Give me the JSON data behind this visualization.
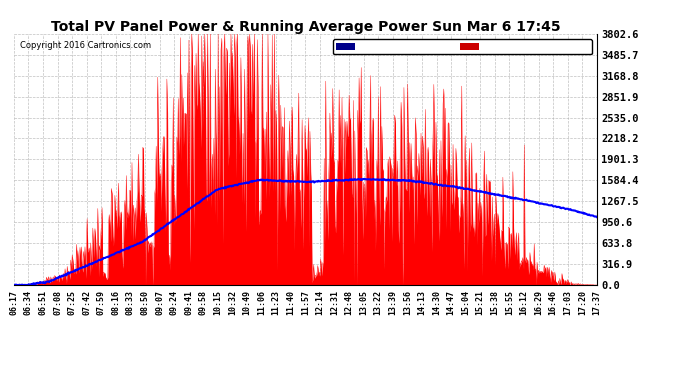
{
  "title": "Total PV Panel Power & Running Average Power Sun Mar 6 17:45",
  "copyright": "Copyright 2016 Cartronics.com",
  "yticks": [
    0.0,
    316.9,
    633.8,
    950.6,
    1267.5,
    1584.4,
    1901.3,
    2218.2,
    2535.0,
    2851.9,
    3168.8,
    3485.7,
    3802.6
  ],
  "ymax": 3802.6,
  "bg_color": "#ffffff",
  "plot_bg_color": "#ffffff",
  "grid_color": "#b0b0b0",
  "pv_color": "#ff0000",
  "avg_color": "#0000ff",
  "legend_avg_bg": "#00008b",
  "legend_pv_bg": "#cc0000",
  "xtick_labels": [
    "06:17",
    "06:34",
    "06:51",
    "07:08",
    "07:25",
    "07:42",
    "07:59",
    "08:16",
    "08:33",
    "08:50",
    "09:07",
    "09:24",
    "09:41",
    "09:58",
    "10:15",
    "10:32",
    "10:49",
    "11:06",
    "11:23",
    "11:40",
    "11:57",
    "12:14",
    "12:31",
    "12:48",
    "13:05",
    "13:22",
    "13:39",
    "13:56",
    "14:13",
    "14:30",
    "14:47",
    "15:04",
    "15:21",
    "15:38",
    "15:55",
    "16:12",
    "16:29",
    "16:46",
    "17:03",
    "17:20",
    "17:37"
  ]
}
